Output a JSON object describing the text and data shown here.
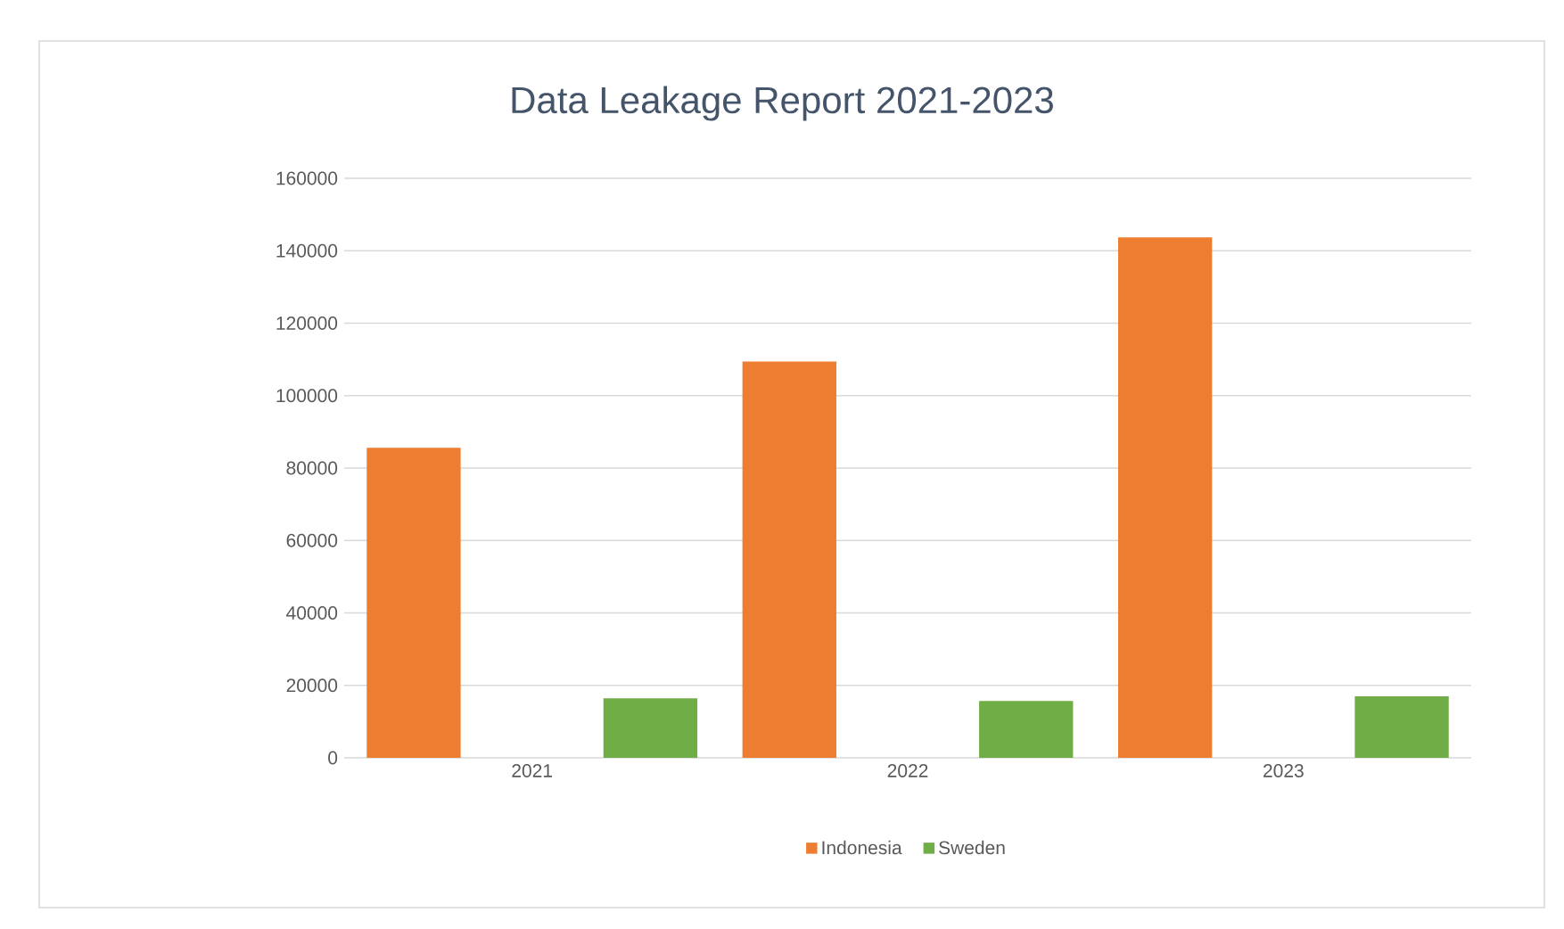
{
  "chart_data": {
    "type": "bar",
    "title": "Data Leakage Report 2021-2023",
    "categories": [
      "2021",
      "2022",
      "2023"
    ],
    "series": [
      {
        "name": "Indonesia",
        "color": "#ed7d31",
        "values": [
          85600,
          109400,
          143700
        ]
      },
      {
        "name": "Sweden",
        "color": "#70ad47",
        "values": [
          16400,
          15700,
          17000
        ]
      }
    ],
    "ylim": [
      0,
      160000
    ],
    "yticks": [
      0,
      20000,
      40000,
      60000,
      80000,
      100000,
      120000,
      140000,
      160000
    ],
    "grid": "y",
    "legend": "bottom"
  }
}
